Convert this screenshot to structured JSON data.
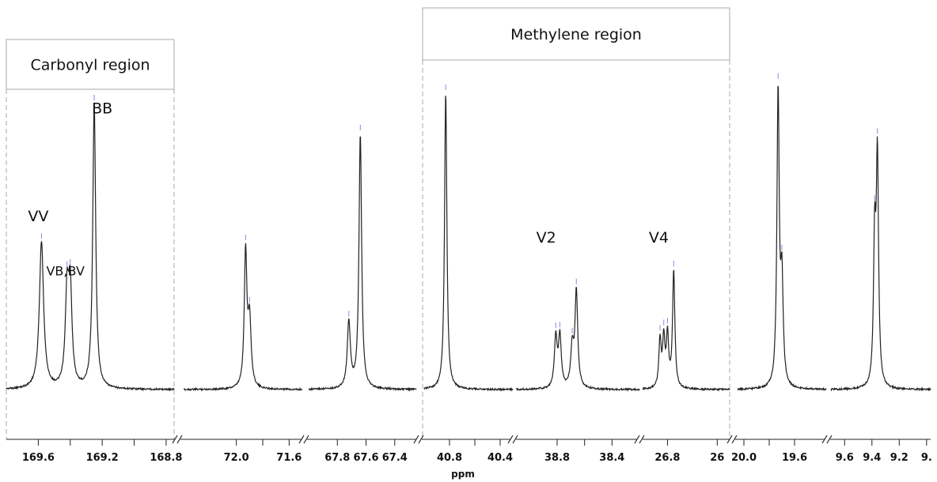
{
  "chart_data": {
    "type": "line",
    "xlabel": "ppm",
    "ylabel": "",
    "title": "",
    "regions": [
      {
        "name": "carbonyl",
        "label": "Carbonyl region",
        "x_range": [
          169.8,
          168.75
        ]
      },
      {
        "name": "methylene",
        "label": "Methylene region",
        "x_range": [
          41.0,
          26.3
        ]
      }
    ],
    "panels": [
      {
        "x_range": [
          169.8,
          168.75
        ],
        "ticks": [
          169.6,
          169.4,
          169.2,
          169.0,
          168.8
        ],
        "tick_labels": [
          "169.6",
          "",
          "169.2",
          "",
          "168.8"
        ],
        "peaks": [
          {
            "x": 169.58,
            "height": 0.49,
            "width": 0.016
          },
          {
            "x": 169.42,
            "height": 0.3,
            "width": 0.013
          },
          {
            "x": 169.4,
            "height": 0.31,
            "width": 0.013
          },
          {
            "x": 169.25,
            "height": 0.95,
            "width": 0.011
          }
        ],
        "annotations": [
          {
            "text": "VV",
            "x": 169.6,
            "level": 0.56
          },
          {
            "text": "VB,BV",
            "x": 169.43,
            "level": 0.38,
            "small": true
          },
          {
            "text": "BB",
            "x": 169.2,
            "level": 0.92
          }
        ]
      },
      {
        "x_range": [
          72.4,
          71.5
        ],
        "ticks": [
          72.0,
          71.8,
          71.6
        ],
        "tick_labels": [
          "72.0",
          "",
          "71.6"
        ],
        "peaks": [
          {
            "x": 71.93,
            "height": 0.45,
            "width": 0.012
          },
          {
            "x": 71.9,
            "height": 0.22,
            "width": 0.014
          }
        ],
        "annotations": []
      },
      {
        "x_range": [
          68.0,
          67.25
        ],
        "ticks": [
          67.8,
          67.6,
          67.4
        ],
        "tick_labels": [
          "67.8",
          "67.6",
          "67.4"
        ],
        "peaks": [
          {
            "x": 67.72,
            "height": 0.22,
            "width": 0.013
          },
          {
            "x": 67.64,
            "height": 0.85,
            "width": 0.011
          }
        ],
        "annotations": []
      },
      {
        "x_range": [
          41.0,
          40.3
        ],
        "ticks": [
          40.8,
          40.6,
          40.4
        ],
        "tick_labels": [
          "40.8",
          "",
          "40.4"
        ],
        "peaks": [
          {
            "x": 40.83,
            "height": 0.99,
            "width": 0.011
          }
        ],
        "annotations": []
      },
      {
        "x_range": [
          39.1,
          38.2
        ],
        "ticks": [
          38.8,
          38.6,
          38.4
        ],
        "tick_labels": [
          "38.8",
          "",
          "38.4"
        ],
        "peaks": [
          {
            "x": 38.81,
            "height": 0.17,
            "width": 0.012
          },
          {
            "x": 38.78,
            "height": 0.17,
            "width": 0.012
          },
          {
            "x": 38.66,
            "height": 0.32,
            "width": 0.012
          },
          {
            "x": 38.69,
            "height": 0.13,
            "width": 0.013
          }
        ],
        "annotations": [
          {
            "text": "V2",
            "x": 38.88,
            "level": 0.49
          }
        ]
      },
      {
        "x_range": [
          27.0,
          26.3
        ],
        "ticks": [
          26.8,
          26.4
        ],
        "tick_labels": [
          "26.8",
          "26"
        ],
        "peaks": [
          {
            "x": 26.86,
            "height": 0.16,
            "width": 0.011
          },
          {
            "x": 26.83,
            "height": 0.16,
            "width": 0.011
          },
          {
            "x": 26.8,
            "height": 0.17,
            "width": 0.011
          },
          {
            "x": 26.75,
            "height": 0.39,
            "width": 0.011
          }
        ],
        "annotations": [
          {
            "text": "V4",
            "x": 26.87,
            "level": 0.49
          }
        ]
      },
      {
        "x_range": [
          20.05,
          19.35
        ],
        "ticks": [
          20.0,
          19.8,
          19.6
        ],
        "tick_labels": [
          "20.0",
          "",
          "19.6"
        ],
        "peaks": [
          {
            "x": 19.73,
            "height": 0.98,
            "width": 0.011
          },
          {
            "x": 19.7,
            "height": 0.34,
            "width": 0.012
          }
        ],
        "annotations": []
      },
      {
        "x_range": [
          9.7,
          8.97
        ],
        "ticks": [
          9.6,
          9.4,
          9.2,
          9.0
        ],
        "tick_labels": [
          "9.6",
          "9.4",
          "9.2",
          "9."
        ],
        "peaks": [
          {
            "x": 9.38,
            "height": 0.47,
            "width": 0.01
          },
          {
            "x": 9.36,
            "height": 0.75,
            "width": 0.01
          }
        ],
        "annotations": []
      }
    ],
    "grid": false,
    "legend": "none"
  }
}
